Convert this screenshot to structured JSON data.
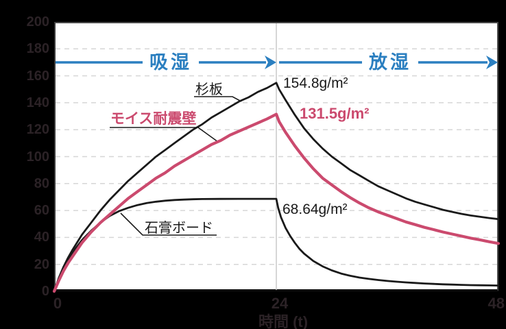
{
  "colors": {
    "background": "#000000",
    "plot_background": "#ffffff",
    "axis_text": "#2b2226",
    "gridline": "#d6d6d6",
    "phase_arrow_blue": "#2b7fc0",
    "series_black": "#1a1a1a",
    "series_pink": "#cb4a6e"
  },
  "phases": {
    "absorption_label": "吸湿",
    "desorption_label": "放湿"
  },
  "chart_data": {
    "type": "line",
    "title": "",
    "xlabel": "時間 (t)",
    "ylabel": "",
    "xlim": [
      0,
      48
    ],
    "ylim": [
      0,
      200
    ],
    "x_ticks": [
      0,
      24,
      48
    ],
    "y_ticks": [
      0,
      20,
      40,
      60,
      80,
      100,
      120,
      140,
      160,
      180,
      200
    ],
    "grid": "horizontal dashed lines every 20 units; solid vertical line at x=24",
    "vline_x": 24,
    "legend_position": "inline curve callouts",
    "phase_annotations": [
      {
        "label": "吸湿",
        "x_range": [
          0,
          24
        ],
        "arrow_y": 170
      },
      {
        "label": "放湿",
        "x_range": [
          24,
          48
        ],
        "arrow_y": 170
      }
    ],
    "series": [
      {
        "name": "杉板",
        "color": "#1a1a1a",
        "peak_label": "154.8g/m²",
        "peak": [
          24,
          154.8
        ],
        "points": [
          [
            0,
            0
          ],
          [
            0.5,
            10
          ],
          [
            1,
            18
          ],
          [
            1.5,
            25
          ],
          [
            2,
            31
          ],
          [
            3,
            42
          ],
          [
            4,
            51
          ],
          [
            5,
            60
          ],
          [
            6,
            68
          ],
          [
            7,
            75
          ],
          [
            8,
            82
          ],
          [
            9,
            88
          ],
          [
            10,
            94
          ],
          [
            11,
            100
          ],
          [
            12,
            105
          ],
          [
            13,
            110
          ],
          [
            14,
            115
          ],
          [
            15,
            120
          ],
          [
            16,
            124
          ],
          [
            17,
            129
          ],
          [
            18,
            133
          ],
          [
            19,
            137
          ],
          [
            20,
            141
          ],
          [
            21,
            144
          ],
          [
            22,
            148
          ],
          [
            23,
            151
          ],
          [
            24,
            154.8
          ],
          [
            24.3,
            150
          ],
          [
            25,
            142
          ],
          [
            26,
            131
          ],
          [
            27,
            121
          ],
          [
            28,
            113
          ],
          [
            29,
            106
          ],
          [
            30,
            100
          ],
          [
            31,
            95
          ],
          [
            32,
            90
          ],
          [
            33,
            86
          ],
          [
            34,
            82
          ],
          [
            35,
            78
          ],
          [
            36,
            75
          ],
          [
            37,
            72
          ],
          [
            38,
            69
          ],
          [
            39,
            66.5
          ],
          [
            40,
            64.5
          ],
          [
            41,
            62.5
          ],
          [
            42,
            60.5
          ],
          [
            43,
            59
          ],
          [
            44,
            57.5
          ],
          [
            45,
            56.3
          ],
          [
            46,
            55.3
          ],
          [
            47,
            54.4
          ],
          [
            48,
            53.6
          ]
        ]
      },
      {
        "name": "モイス耐震壁",
        "color": "#cb4a6e",
        "peak_label": "131.5g/m²",
        "peak": [
          24,
          131.5
        ],
        "points": [
          [
            0,
            0
          ],
          [
            0.5,
            8
          ],
          [
            1,
            15
          ],
          [
            1.5,
            21
          ],
          [
            2,
            26
          ],
          [
            3,
            36
          ],
          [
            4,
            44
          ],
          [
            5,
            51
          ],
          [
            6,
            57
          ],
          [
            7,
            63
          ],
          [
            8,
            69
          ],
          [
            9,
            74
          ],
          [
            10,
            79
          ],
          [
            11,
            84
          ],
          [
            12,
            88
          ],
          [
            13,
            93
          ],
          [
            14,
            97
          ],
          [
            15,
            101
          ],
          [
            16,
            105
          ],
          [
            17,
            109
          ],
          [
            18,
            112
          ],
          [
            19,
            116
          ],
          [
            20,
            119
          ],
          [
            21,
            122
          ],
          [
            22,
            125
          ],
          [
            23,
            128
          ],
          [
            24,
            131.5
          ],
          [
            24.3,
            126
          ],
          [
            25,
            118
          ],
          [
            26,
            108
          ],
          [
            27,
            99
          ],
          [
            28,
            91
          ],
          [
            29,
            84
          ],
          [
            30,
            79
          ],
          [
            31,
            74
          ],
          [
            32,
            69.5
          ],
          [
            33,
            65.5
          ],
          [
            34,
            62
          ],
          [
            35,
            59
          ],
          [
            36,
            56.5
          ],
          [
            37,
            54
          ],
          [
            38,
            51.5
          ],
          [
            39,
            49.5
          ],
          [
            40,
            47.5
          ],
          [
            41,
            45.8
          ],
          [
            42,
            44
          ],
          [
            43,
            42.5
          ],
          [
            44,
            41
          ],
          [
            45,
            39.5
          ],
          [
            46,
            38.2
          ],
          [
            47,
            36.8
          ],
          [
            48,
            35.5
          ]
        ]
      },
      {
        "name": "石膏ボード",
        "color": "#1a1a1a",
        "peak_label": "68.64g/m²",
        "peak": [
          24,
          68.64
        ],
        "points": [
          [
            0,
            0
          ],
          [
            0.5,
            9
          ],
          [
            1,
            17
          ],
          [
            1.5,
            23
          ],
          [
            2,
            29
          ],
          [
            3,
            38
          ],
          [
            4,
            45
          ],
          [
            5,
            51
          ],
          [
            6,
            56
          ],
          [
            7,
            59.5
          ],
          [
            8,
            62
          ],
          [
            9,
            64
          ],
          [
            10,
            65.5
          ],
          [
            11,
            66.5
          ],
          [
            12,
            67.3
          ],
          [
            13,
            67.8
          ],
          [
            14,
            68.1
          ],
          [
            15,
            68.35
          ],
          [
            16,
            68.5
          ],
          [
            18,
            68.6
          ],
          [
            20,
            68.64
          ],
          [
            22,
            68.64
          ],
          [
            24,
            68.64
          ],
          [
            24.2,
            62
          ],
          [
            24.5,
            55
          ],
          [
            25,
            47
          ],
          [
            25.5,
            41
          ],
          [
            26,
            36
          ],
          [
            26.5,
            31.5
          ],
          [
            27,
            28
          ],
          [
            28,
            22.5
          ],
          [
            29,
            18.5
          ],
          [
            30,
            15.5
          ],
          [
            31,
            13.2
          ],
          [
            32,
            11.5
          ],
          [
            33,
            10.2
          ],
          [
            34,
            9.2
          ],
          [
            35,
            8.4
          ],
          [
            36,
            7.7
          ],
          [
            37,
            7.1
          ],
          [
            38,
            6.6
          ],
          [
            39,
            6.2
          ],
          [
            40,
            5.8
          ],
          [
            41,
            5.5
          ],
          [
            42,
            5.2
          ],
          [
            43,
            5
          ],
          [
            44,
            4.8
          ],
          [
            45,
            4.6
          ],
          [
            46,
            4.5
          ],
          [
            47,
            4.4
          ],
          [
            48,
            4.3
          ]
        ]
      }
    ]
  }
}
